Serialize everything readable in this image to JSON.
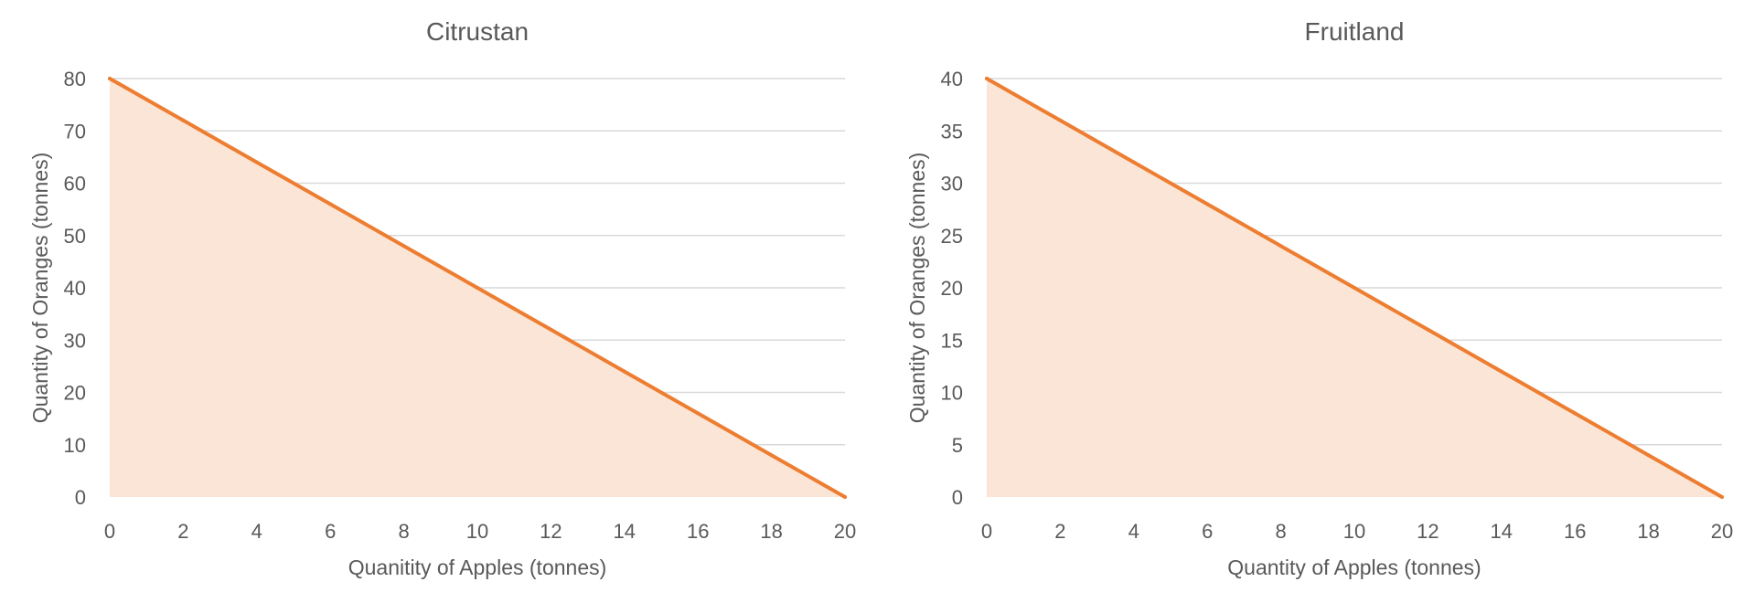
{
  "chart_data": [
    {
      "type": "area",
      "title": "Citrustan",
      "xlabel": "Quanitity of Apples (tonnes)",
      "ylabel": "Quantity of Oranges (tonnes)",
      "xlim": [
        0,
        20
      ],
      "ylim": [
        0,
        80
      ],
      "x_ticks": [
        0,
        2,
        4,
        6,
        8,
        10,
        12,
        14,
        16,
        18,
        20
      ],
      "y_ticks": [
        0,
        10,
        20,
        30,
        40,
        50,
        60,
        70,
        80
      ],
      "grid": true,
      "series": [
        {
          "x": [
            0,
            2,
            4,
            6,
            8,
            10,
            12,
            14,
            16,
            18,
            20
          ],
          "values": [
            80,
            72,
            64,
            56,
            48,
            40,
            32,
            24,
            16,
            8,
            0
          ]
        }
      ]
    },
    {
      "type": "area",
      "title": "Fruitland",
      "xlabel": "Quantity of Apples (tonnes)",
      "ylabel": "Quantity of Oranges (tonnes)",
      "xlim": [
        0,
        20
      ],
      "ylim": [
        0,
        40
      ],
      "x_ticks": [
        0,
        2,
        4,
        6,
        8,
        10,
        12,
        14,
        16,
        18,
        20
      ],
      "y_ticks": [
        0,
        5,
        10,
        15,
        20,
        25,
        30,
        35,
        40
      ],
      "grid": true,
      "series": [
        {
          "x": [
            0,
            2,
            4,
            6,
            8,
            10,
            12,
            14,
            16,
            18,
            20
          ],
          "values": [
            40,
            36,
            32,
            28,
            24,
            20,
            16,
            12,
            8,
            4,
            0
          ]
        }
      ]
    }
  ],
  "colors": {
    "line": "#ed7d31",
    "fill": "#fbe5d6",
    "grid": "#d9d9d9",
    "text": "#595959"
  }
}
